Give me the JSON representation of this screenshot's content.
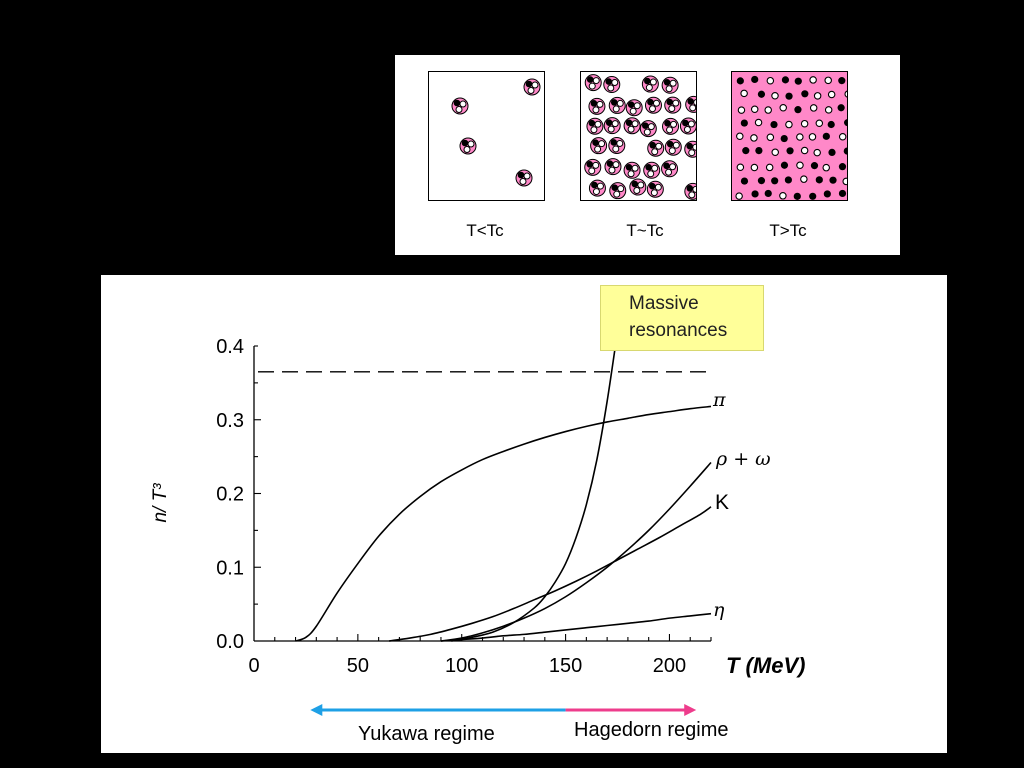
{
  "phases": {
    "labels": [
      "T<Tc",
      "T~Tc",
      "T>Tc"
    ],
    "icon_names": [
      "isolated-hadrons-icon",
      "overlapping-hadrons-icon",
      "deconfined-plasma-icon"
    ],
    "colors": {
      "pink": "#ff88c8",
      "black": "#000000",
      "white": "#ffffff"
    }
  },
  "annotation": {
    "line1": "Massive",
    "line2": "resonances",
    "color": "#ffff99"
  },
  "regimes": {
    "yukawa": {
      "label": "Yukawa regime",
      "color": "#1ea0e6",
      "range": [
        30,
        150
      ]
    },
    "hagedorn": {
      "label": "Hagedorn regime",
      "color": "#ee3c8c",
      "range": [
        150,
        210
      ]
    }
  },
  "chart_data": {
    "type": "line",
    "xlabel": "T (MeV)",
    "ylabel": "n/ T³",
    "xlim": [
      0,
      220
    ],
    "ylim": [
      0,
      0.4
    ],
    "xticks": [
      "0",
      "50",
      "100",
      "150",
      "200"
    ],
    "yticks": [
      "0.0",
      "0.1",
      "0.2",
      "0.3",
      "0.4"
    ],
    "grid": false,
    "reference_line": {
      "y": 0.365,
      "style": "dashed"
    },
    "series": [
      {
        "name": "π",
        "x": [
          20,
          25,
          30,
          40,
          50,
          60,
          70,
          80,
          90,
          100,
          110,
          120,
          130,
          140,
          150,
          160,
          170,
          180,
          190,
          200,
          210,
          220
        ],
        "values": [
          0,
          0.005,
          0.02,
          0.065,
          0.105,
          0.142,
          0.172,
          0.196,
          0.216,
          0.232,
          0.246,
          0.257,
          0.267,
          0.276,
          0.284,
          0.291,
          0.297,
          0.302,
          0.307,
          0.311,
          0.315,
          0.318
        ]
      },
      {
        "name": "ρ + ω",
        "x": [
          90,
          100,
          110,
          120,
          130,
          140,
          150,
          160,
          170,
          180,
          190,
          200,
          210,
          220
        ],
        "values": [
          0,
          0.004,
          0.011,
          0.02,
          0.031,
          0.044,
          0.06,
          0.079,
          0.1,
          0.124,
          0.15,
          0.179,
          0.21,
          0.242
        ]
      },
      {
        "name": "K",
        "x": [
          65,
          75,
          85,
          95,
          105,
          115,
          125,
          135,
          145,
          155,
          165,
          175,
          185,
          195,
          205,
          215,
          220
        ],
        "values": [
          0,
          0.004,
          0.009,
          0.016,
          0.024,
          0.033,
          0.044,
          0.056,
          0.068,
          0.081,
          0.095,
          0.11,
          0.125,
          0.14,
          0.156,
          0.172,
          0.182
        ]
      },
      {
        "name": "η",
        "x": [
          90,
          100,
          110,
          120,
          130,
          140,
          150,
          160,
          170,
          180,
          190,
          200,
          210,
          220
        ],
        "values": [
          0,
          0.002,
          0.004,
          0.007,
          0.009,
          0.012,
          0.015,
          0.018,
          0.021,
          0.024,
          0.027,
          0.031,
          0.034,
          0.037
        ]
      },
      {
        "name": "Massive resonances",
        "x": [
          95,
          105,
          115,
          125,
          135,
          140,
          145,
          150,
          155,
          160,
          165,
          170,
          175
        ],
        "values": [
          0,
          0.005,
          0.012,
          0.025,
          0.045,
          0.06,
          0.08,
          0.105,
          0.14,
          0.185,
          0.245,
          0.325,
          0.42
        ]
      }
    ]
  }
}
